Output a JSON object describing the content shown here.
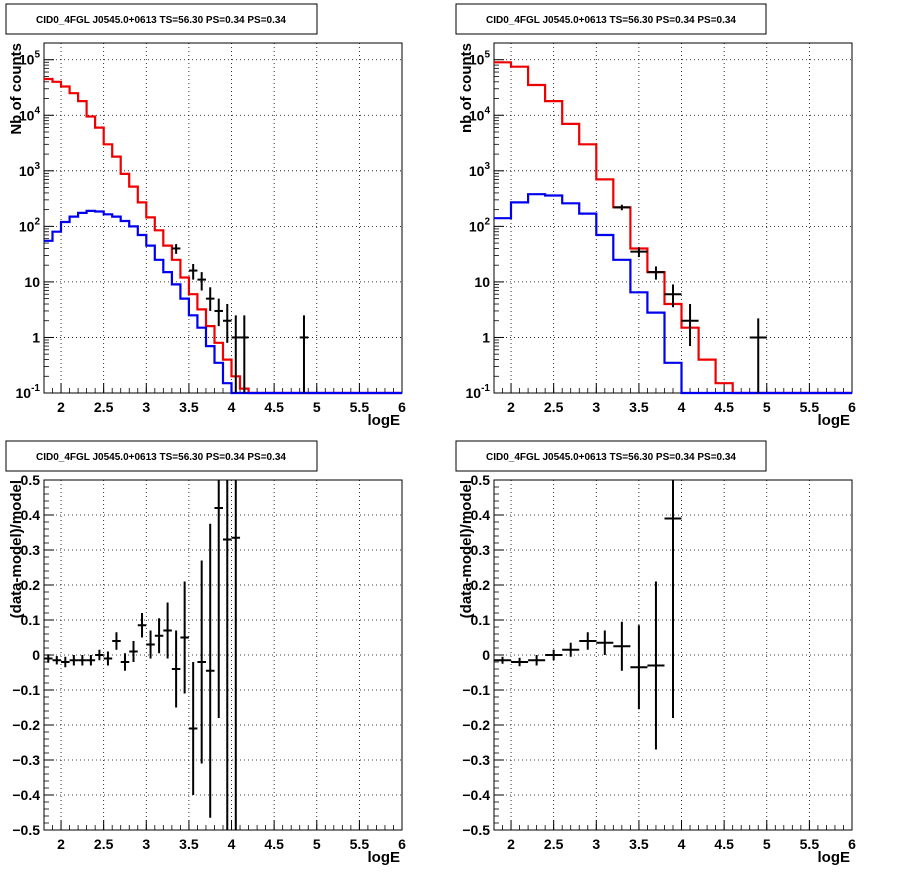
{
  "chart_data": [
    {
      "type": "line",
      "title": "CID0_4FGL J0545.0+0613 TS=56.30 PS=0.34 PS=0.34",
      "xlabel": "logE",
      "ylabel": "Nb of counts",
      "yscale": "log",
      "xlim": [
        1.8,
        6.0
      ],
      "ylim": [
        0.1,
        200000
      ],
      "x_ticks": [
        "2",
        "2.5",
        "3",
        "3.5",
        "4",
        "4.5",
        "5",
        "5.5",
        "6"
      ],
      "y_ticks": [
        "10^-1",
        "1",
        "10",
        "10^2",
        "10^3",
        "10^4",
        "10^5"
      ],
      "grid": true,
      "series": [
        {
          "color": "#ee0000",
          "style": "step",
          "bin_edges": [
            1.8,
            1.9,
            2.0,
            2.1,
            2.2,
            2.3,
            2.4,
            2.5,
            2.6,
            2.7,
            2.8,
            2.9,
            3.0,
            3.1,
            3.2,
            3.3,
            3.4,
            3.5,
            3.6,
            3.7,
            3.8,
            3.9,
            4.0,
            4.1,
            4.2,
            4.3,
            4.4,
            6.0
          ],
          "values": [
            45000,
            40000,
            33000,
            25000,
            18000,
            9500,
            6000,
            3000,
            1800,
            880,
            520,
            270,
            145,
            85,
            45,
            25,
            12,
            6,
            3.2,
            1.6,
            0.8,
            0.4,
            0.2,
            0.12,
            0.1,
            0.1,
            0.1
          ]
        },
        {
          "color": "#0000ee",
          "style": "step",
          "bin_edges": [
            1.8,
            1.9,
            2.0,
            2.1,
            2.2,
            2.3,
            2.4,
            2.5,
            2.6,
            2.7,
            2.8,
            2.9,
            3.0,
            3.1,
            3.2,
            3.3,
            3.4,
            3.5,
            3.6,
            3.7,
            3.8,
            3.9,
            4.0,
            4.1,
            6.0
          ],
          "values": [
            55,
            80,
            120,
            150,
            175,
            190,
            185,
            165,
            150,
            125,
            100,
            70,
            45,
            25,
            15,
            9,
            5,
            2.5,
            1.5,
            0.7,
            0.35,
            0.15,
            0.1,
            0.1
          ]
        },
        {
          "color": "#000000",
          "style": "errorbar",
          "points": [
            {
              "x": 3.35,
              "y": 40,
              "ylo": 32,
              "yhi": 48,
              "xerr": 0.05
            },
            {
              "x": 3.55,
              "y": 16,
              "ylo": 11,
              "yhi": 21,
              "xerr": 0.05
            },
            {
              "x": 3.65,
              "y": 11,
              "ylo": 7,
              "yhi": 15,
              "xerr": 0.05
            },
            {
              "x": 3.75,
              "y": 5,
              "ylo": 3,
              "yhi": 8,
              "xerr": 0.05
            },
            {
              "x": 3.85,
              "y": 3,
              "ylo": 1.6,
              "yhi": 5,
              "xerr": 0.05
            },
            {
              "x": 3.95,
              "y": 2,
              "ylo": 0.8,
              "yhi": 4,
              "xerr": 0.05
            },
            {
              "x": 4.05,
              "y": 1,
              "ylo": 0.1,
              "yhi": 2.5,
              "xerr": 0.05
            },
            {
              "x": 4.15,
              "y": 1,
              "ylo": 0.1,
              "yhi": 2.5,
              "xerr": 0.05
            },
            {
              "x": 4.85,
              "y": 1,
              "ylo": 0.1,
              "yhi": 2.5,
              "xerr": 0.05
            }
          ]
        }
      ]
    },
    {
      "type": "line",
      "title": "CID0_4FGL J0545.0+0613 TS=56.30 PS=0.34 PS=0.34",
      "xlabel": "logE",
      "ylabel": "nb of counts",
      "yscale": "log",
      "xlim": [
        1.8,
        6.0
      ],
      "ylim": [
        0.1,
        200000
      ],
      "x_ticks": [
        "2",
        "2.5",
        "3",
        "3.5",
        "4",
        "4.5",
        "5",
        "5.5",
        "6"
      ],
      "y_ticks": [
        "10^-1",
        "1",
        "10",
        "10^2",
        "10^3",
        "10^4",
        "10^5"
      ],
      "grid": true,
      "series": [
        {
          "color": "#ee0000",
          "style": "step",
          "bin_edges": [
            1.8,
            2.0,
            2.2,
            2.4,
            2.6,
            2.8,
            3.0,
            3.2,
            3.4,
            3.6,
            3.8,
            4.0,
            4.2,
            4.4,
            4.6,
            6.0
          ],
          "values": [
            90000,
            75000,
            35000,
            18000,
            7000,
            3000,
            700,
            220,
            40,
            15,
            4,
            1.5,
            0.4,
            0.15,
            0.1
          ]
        },
        {
          "color": "#0000ee",
          "style": "step",
          "bin_edges": [
            1.8,
            2.0,
            2.2,
            2.4,
            2.6,
            2.8,
            3.0,
            3.2,
            3.4,
            3.6,
            3.8,
            4.0,
            6.0
          ],
          "values": [
            140,
            270,
            380,
            360,
            260,
            170,
            70,
            25,
            6.5,
            2.8,
            0.35,
            0.1
          ]
        },
        {
          "color": "#000000",
          "style": "errorbar",
          "points": [
            {
              "x": 3.3,
              "y": 220,
              "ylo": 195,
              "yhi": 245,
              "xerr": 0.1
            },
            {
              "x": 3.5,
              "y": 35,
              "ylo": 28,
              "yhi": 42,
              "xerr": 0.1
            },
            {
              "x": 3.7,
              "y": 15,
              "ylo": 11,
              "yhi": 19,
              "xerr": 0.1
            },
            {
              "x": 3.9,
              "y": 6,
              "ylo": 3.5,
              "yhi": 9,
              "xerr": 0.1
            },
            {
              "x": 4.1,
              "y": 2,
              "ylo": 0.7,
              "yhi": 4,
              "xerr": 0.1
            },
            {
              "x": 4.9,
              "y": 1,
              "ylo": 0.1,
              "yhi": 2.2,
              "xerr": 0.1
            }
          ]
        }
      ]
    },
    {
      "type": "scatter",
      "title": "CID0_4FGL J0545.0+0613 TS=56.30 PS=0.34 PS=0.34",
      "xlabel": "logE",
      "ylabel": "(data-model)/model",
      "yscale": "linear",
      "xlim": [
        1.8,
        6.0
      ],
      "ylim": [
        -0.5,
        0.5
      ],
      "x_ticks": [
        "2",
        "2.5",
        "3",
        "3.5",
        "4",
        "4.5",
        "5",
        "5.5",
        "6"
      ],
      "y_ticks": [
        "−0.5",
        "−0.4",
        "−0.3",
        "−0.2",
        "−0.1",
        "0",
        "0.1",
        "0.2",
        "0.3",
        "0.4",
        "0.5"
      ],
      "grid": true,
      "series": [
        {
          "color": "#000000",
          "style": "errorbar",
          "points": [
            {
              "x": 1.85,
              "y": -0.01,
              "err": 0.012,
              "xerr": 0.05
            },
            {
              "x": 1.95,
              "y": -0.015,
              "err": 0.012,
              "xerr": 0.05
            },
            {
              "x": 2.05,
              "y": -0.02,
              "err": 0.015,
              "xerr": 0.05
            },
            {
              "x": 2.15,
              "y": -0.015,
              "err": 0.015,
              "xerr": 0.05
            },
            {
              "x": 2.25,
              "y": -0.015,
              "err": 0.015,
              "xerr": 0.05
            },
            {
              "x": 2.35,
              "y": -0.015,
              "err": 0.015,
              "xerr": 0.05
            },
            {
              "x": 2.45,
              "y": 0.0,
              "err": 0.015,
              "xerr": 0.05
            },
            {
              "x": 2.55,
              "y": -0.01,
              "err": 0.02,
              "xerr": 0.05
            },
            {
              "x": 2.65,
              "y": 0.04,
              "err": 0.025,
              "xerr": 0.05
            },
            {
              "x": 2.75,
              "y": -0.02,
              "err": 0.025,
              "xerr": 0.05
            },
            {
              "x": 2.85,
              "y": 0.01,
              "err": 0.03,
              "xerr": 0.05
            },
            {
              "x": 2.95,
              "y": 0.085,
              "err": 0.035,
              "xerr": 0.05
            },
            {
              "x": 3.05,
              "y": 0.03,
              "err": 0.04,
              "xerr": 0.05
            },
            {
              "x": 3.15,
              "y": 0.055,
              "err": 0.05,
              "xerr": 0.05
            },
            {
              "x": 3.25,
              "y": 0.07,
              "err": 0.08,
              "xerr": 0.05
            },
            {
              "x": 3.35,
              "y": -0.04,
              "err": 0.11,
              "xerr": 0.05
            },
            {
              "x": 3.45,
              "y": 0.05,
              "err": 0.16,
              "xerr": 0.05
            },
            {
              "x": 3.55,
              "y": -0.21,
              "err": 0.19,
              "xerr": 0.05
            },
            {
              "x": 3.65,
              "y": -0.02,
              "err": 0.29,
              "xerr": 0.05
            },
            {
              "x": 3.75,
              "y": -0.045,
              "err": 0.42,
              "xerr": 0.05
            },
            {
              "x": 3.85,
              "y": 0.42,
              "err": 0.6,
              "xerr": 0.05
            },
            {
              "x": 3.95,
              "y": 0.33,
              "err": 0.9,
              "xerr": 0.05
            },
            {
              "x": 4.05,
              "y": 0.335,
              "err": 1.0,
              "xerr": 0.05
            }
          ]
        }
      ]
    },
    {
      "type": "scatter",
      "title": "CID0_4FGL J0545.0+0613 TS=56.30 PS=0.34 PS=0.34",
      "xlabel": "logE",
      "ylabel": "(data-model)/model",
      "yscale": "linear",
      "xlim": [
        1.8,
        6.0
      ],
      "ylim": [
        -0.5,
        0.5
      ],
      "x_ticks": [
        "2",
        "2.5",
        "3",
        "3.5",
        "4",
        "4.5",
        "5",
        "5.5",
        "6"
      ],
      "y_ticks": [
        "−0.5",
        "−0.4",
        "−0.3",
        "−0.2",
        "−0.1",
        "0",
        "0.1",
        "0.2",
        "0.3",
        "0.4",
        "0.5"
      ],
      "grid": true,
      "series": [
        {
          "color": "#000000",
          "style": "errorbar",
          "points": [
            {
              "x": 1.9,
              "y": -0.015,
              "err": 0.01,
              "xerr": 0.1
            },
            {
              "x": 2.1,
              "y": -0.02,
              "err": 0.012,
              "xerr": 0.1
            },
            {
              "x": 2.3,
              "y": -0.015,
              "err": 0.015,
              "xerr": 0.1
            },
            {
              "x": 2.5,
              "y": 0.0,
              "err": 0.015,
              "xerr": 0.1
            },
            {
              "x": 2.7,
              "y": 0.015,
              "err": 0.02,
              "xerr": 0.1
            },
            {
              "x": 2.9,
              "y": 0.04,
              "err": 0.025,
              "xerr": 0.1
            },
            {
              "x": 3.1,
              "y": 0.035,
              "err": 0.035,
              "xerr": 0.1
            },
            {
              "x": 3.3,
              "y": 0.025,
              "err": 0.07,
              "xerr": 0.1
            },
            {
              "x": 3.5,
              "y": -0.035,
              "err": 0.12,
              "xerr": 0.1
            },
            {
              "x": 3.7,
              "y": -0.03,
              "err": 0.24,
              "xerr": 0.1
            },
            {
              "x": 3.9,
              "y": 0.39,
              "err": 0.57,
              "xerr": 0.1
            }
          ]
        }
      ]
    }
  ]
}
